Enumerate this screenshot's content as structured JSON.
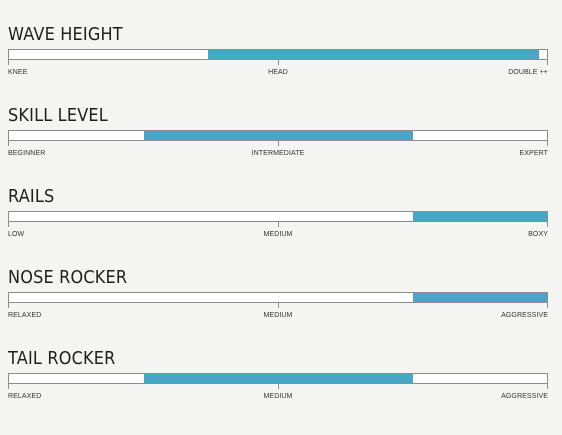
{
  "specs": [
    {
      "title": "WAVE HEIGHT",
      "labels": {
        "left": "KNEE",
        "mid": "HEAD",
        "right": "DOUBLE ++"
      },
      "range": {
        "start": 0.37,
        "end": 0.985
      },
      "fill_color": "#46a8c6"
    },
    {
      "title": "SKILL LEVEL",
      "labels": {
        "left": "BEGINNER",
        "mid": "INTERMEDIATE",
        "right": "EXPERT"
      },
      "range": {
        "start": 0.25,
        "end": 0.75
      },
      "fill_color": "#46a8c6"
    },
    {
      "title": "RAILS",
      "labels": {
        "left": "LOW",
        "mid": "MEDIUM",
        "right": "BOXY"
      },
      "range": {
        "start": 0.75,
        "end": 1.0
      },
      "fill_color": "#46a8c6"
    },
    {
      "title": "NOSE ROCKER",
      "labels": {
        "left": "RELAXED",
        "mid": "MEDIUM",
        "right": "AGGRESSIVE"
      },
      "range": {
        "start": 0.75,
        "end": 1.0
      },
      "fill_color": "#46a8c6"
    },
    {
      "title": "TAIL ROCKER",
      "labels": {
        "left": "RELAXED",
        "mid": "MEDIUM",
        "right": "AGGRESSIVE"
      },
      "range": {
        "start": 0.25,
        "end": 0.75
      },
      "fill_color": "#46a8c6"
    }
  ]
}
